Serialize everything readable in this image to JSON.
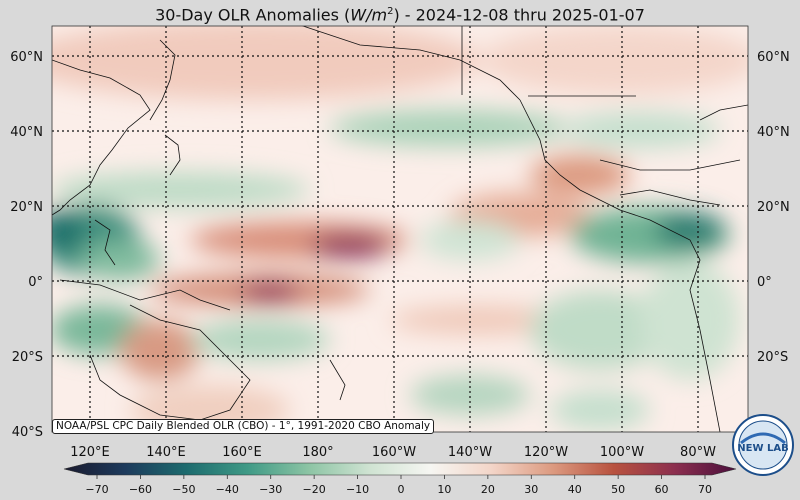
{
  "title": {
    "prefix": "30-Day OLR Anomalies (",
    "unit_base": "W/m",
    "unit_exp": "2",
    "suffix": ") - 2024-12-08 thru 2025-01-07"
  },
  "map": {
    "lat_labels": [
      "60°N",
      "40°N",
      "20°N",
      "0°",
      "20°S",
      "40°S"
    ],
    "lon_labels": [
      "120°E",
      "140°E",
      "160°E",
      "180°",
      "160°W",
      "140°W",
      "120°W",
      "100°W",
      "80°W"
    ],
    "anomaly_colors": {
      "positive_strong": "#7a1f5e",
      "positive_mid": "#c4604a",
      "positive_weak": "#f2c8b6",
      "neutral": "#fbf0ec",
      "negative_weak": "#c6e0cf",
      "negative_mid": "#5aa98a",
      "negative_strong": "#1e6f6a"
    }
  },
  "source_note": "NOAA/PSL CPC Daily Blended OLR (CBO) - 1°, 1991-2020 CBO Anomaly",
  "colorbar": {
    "ticks": [
      "−70",
      "−60",
      "−50",
      "−40",
      "−30",
      "−20",
      "−10",
      "0",
      "10",
      "20",
      "30",
      "40",
      "50",
      "60",
      "70"
    ],
    "colors": [
      "#1a1a2e",
      "#1d3a5c",
      "#1d6b6e",
      "#3f9a86",
      "#8cc4a4",
      "#cfe3d2",
      "#f6f6f2",
      "#f3d5c8",
      "#dc9a80",
      "#b8523f",
      "#8c2f4f",
      "#4b0f3c"
    ]
  },
  "logo": {
    "text": "NEW LAB",
    "icon": "noaa-logo-icon"
  }
}
